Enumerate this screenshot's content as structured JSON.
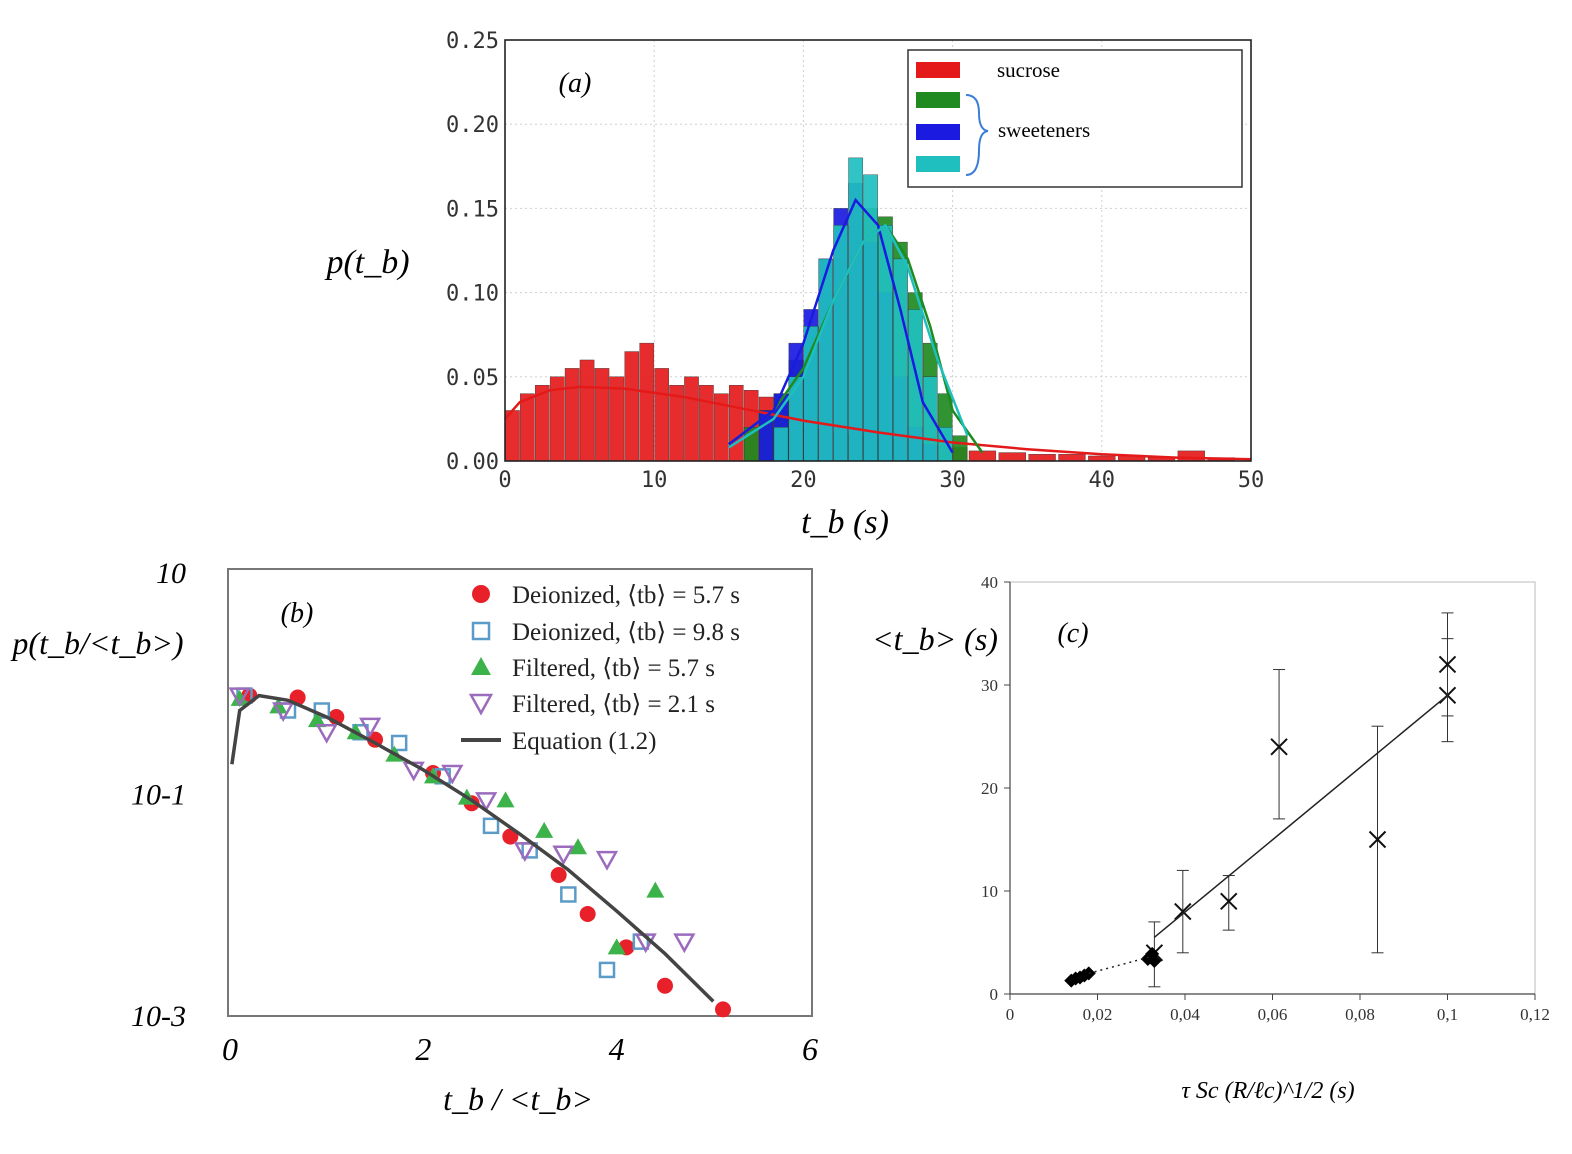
{
  "chart_data": [
    {
      "type": "bar",
      "panel": "(a)",
      "ylabel": "p(t_b)",
      "xlabel": "t_b (s)",
      "xlim": [
        0,
        50
      ],
      "ylim": [
        0,
        0.25
      ],
      "xticks": [
        "0",
        "10",
        "20",
        "30",
        "40",
        "50"
      ],
      "yticks": [
        "0.00",
        "0.05",
        "0.10",
        "0.15",
        "0.20",
        "0.25"
      ],
      "grid": true,
      "legend": {
        "placement": "top-right",
        "entries": [
          "sucrose",
          "",
          "sweeteners",
          ""
        ],
        "colors": [
          "#e41a1a",
          "#1f8a1f",
          "#1a1ae0",
          "#1fbfbf"
        ]
      },
      "series": [
        {
          "name": "sucrose",
          "color": "#e41a1a",
          "x": [
            0.5,
            1.5,
            2.5,
            3.5,
            4.5,
            5.5,
            6.5,
            7.5,
            8.5,
            9.5,
            10.5,
            11.5,
            12.5,
            13.5,
            14.5,
            15.5,
            16.5,
            17.5,
            18.5,
            19.5,
            20.5,
            21.5,
            22.5,
            23.5,
            24.5,
            25.5,
            26.5,
            27.5,
            28.5,
            29.5,
            30.5,
            32,
            34,
            36,
            38,
            40,
            42,
            44,
            46,
            48
          ],
          "values": [
            0.03,
            0.04,
            0.045,
            0.05,
            0.055,
            0.06,
            0.055,
            0.05,
            0.065,
            0.07,
            0.055,
            0.045,
            0.05,
            0.045,
            0.04,
            0.045,
            0.042,
            0.038,
            0.03,
            0.02,
            0.02,
            0.018,
            0.017,
            0.016,
            0.015,
            0.014,
            0.013,
            0.012,
            0.01,
            0.009,
            0.008,
            0.006,
            0.005,
            0.004,
            0.004,
            0.003,
            0.003,
            0.002,
            0.006,
            0.002
          ],
          "fit": [
            [
              0,
              0.025
            ],
            [
              1,
              0.035
            ],
            [
              3,
              0.042
            ],
            [
              5,
              0.044
            ],
            [
              8,
              0.043
            ],
            [
              12,
              0.038
            ],
            [
              16,
              0.031
            ],
            [
              20,
              0.024
            ],
            [
              25,
              0.017
            ],
            [
              30,
              0.011
            ],
            [
              35,
              0.007
            ],
            [
              40,
              0.004
            ],
            [
              45,
              0.002
            ],
            [
              50,
              0.001
            ]
          ]
        },
        {
          "name": "sweetener 1",
          "color": "#1f8a1f",
          "x": [
            16.5,
            17.5,
            18.5,
            19.5,
            20.5,
            21.5,
            22.5,
            23.5,
            24.5,
            25.5,
            26.5,
            27.5,
            28.5,
            29.5,
            30.5
          ],
          "values": [
            0.02,
            0.03,
            0.04,
            0.06,
            0.08,
            0.1,
            0.12,
            0.14,
            0.15,
            0.145,
            0.13,
            0.1,
            0.07,
            0.04,
            0.015
          ],
          "fit": [
            [
              15,
              0.01
            ],
            [
              18,
              0.03
            ],
            [
              20,
              0.055
            ],
            [
              22,
              0.095
            ],
            [
              24,
              0.13
            ],
            [
              25.5,
              0.14
            ],
            [
              27,
              0.12
            ],
            [
              28.5,
              0.08
            ],
            [
              30,
              0.03
            ],
            [
              32,
              0.005
            ]
          ]
        },
        {
          "name": "sweetener 2",
          "color": "#1a1ae0",
          "x": [
            17.5,
            18.5,
            19.5,
            20.5,
            21.5,
            22.5,
            23.5,
            24.5,
            25.5,
            26.5,
            27.5,
            28.5
          ],
          "values": [
            0.03,
            0.04,
            0.07,
            0.09,
            0.12,
            0.15,
            0.165,
            0.13,
            0.1,
            0.05,
            0.02,
            0.01
          ],
          "fit": [
            [
              15,
              0.01
            ],
            [
              18,
              0.03
            ],
            [
              20,
              0.07
            ],
            [
              22,
              0.125
            ],
            [
              23.5,
              0.155
            ],
            [
              25,
              0.14
            ],
            [
              26.5,
              0.09
            ],
            [
              28,
              0.035
            ],
            [
              30,
              0.005
            ]
          ]
        },
        {
          "name": "sweetener 3",
          "color": "#1fbfbf",
          "x": [
            18.5,
            19.5,
            20.5,
            21.5,
            22.5,
            23.5,
            24.5,
            25.5,
            26.5,
            27.5,
            28.5,
            29.5
          ],
          "values": [
            0.02,
            0.05,
            0.08,
            0.12,
            0.14,
            0.18,
            0.17,
            0.14,
            0.12,
            0.09,
            0.05,
            0.02
          ],
          "fit": [
            [
              15,
              0.008
            ],
            [
              18,
              0.025
            ],
            [
              20,
              0.05
            ],
            [
              22,
              0.095
            ],
            [
              24,
              0.13
            ],
            [
              25.5,
              0.14
            ],
            [
              27,
              0.115
            ],
            [
              29,
              0.06
            ],
            [
              31,
              0.015
            ]
          ]
        }
      ]
    },
    {
      "type": "scatter",
      "panel": "(b)",
      "scale": "log-y",
      "ylabel": "p(t_b/<t_b>)",
      "xlabel": "t_b / <t_b>",
      "xlim": [
        0,
        6
      ],
      "ylim": [
        0.001,
        10
      ],
      "xticks": [
        "0",
        "2",
        "4",
        "6"
      ],
      "yticks": [
        "10",
        "10-1",
        "10-3"
      ],
      "legend": {
        "placement": "top-right"
      },
      "series": [
        {
          "name": "Deionized, ⟨t_b⟩ = 5.7 s",
          "label_text": "Deionized, ⟨tb⟩ = 5.7 s",
          "marker": "circle",
          "color": "#e8202a",
          "x": [
            0.2,
            0.7,
            1.1,
            1.5,
            2.1,
            2.5,
            2.9,
            3.4,
            3.7,
            4.1,
            4.5,
            5.1
          ],
          "y": [
            0.75,
            0.72,
            0.48,
            0.3,
            0.15,
            0.08,
            0.04,
            0.018,
            0.008,
            0.004,
            0.0018,
            0.0011
          ]
        },
        {
          "name": "Deionized, ⟨t_b⟩ = 9.8 s",
          "label_text": "Deionized, ⟨tb⟩ = 9.8 s",
          "marker": "square-open",
          "color": "#5b9bc8",
          "x": [
            0.15,
            0.6,
            0.95,
            1.35,
            1.75,
            2.2,
            2.7,
            3.1,
            3.5,
            3.9,
            4.25
          ],
          "y": [
            0.75,
            0.55,
            0.55,
            0.35,
            0.28,
            0.14,
            0.05,
            0.03,
            0.012,
            0.0025,
            0.0045
          ]
        },
        {
          "name": "Filtered, ⟨t_b⟩ = 5.7 s",
          "label_text": "Filtered, ⟨tb⟩ = 5.7 s",
          "marker": "triangle",
          "color": "#3cb34a",
          "x": [
            0.1,
            0.5,
            0.9,
            1.3,
            1.7,
            2.1,
            2.45,
            2.85,
            3.25,
            3.6,
            4.0,
            4.4
          ],
          "y": [
            0.7,
            0.6,
            0.45,
            0.35,
            0.22,
            0.14,
            0.09,
            0.085,
            0.045,
            0.032,
            0.004,
            0.013
          ]
        },
        {
          "name": "Filtered, ⟨t_b⟩ = 2.1 s",
          "label_text": "Filtered, ⟨tb⟩ = 2.1 s",
          "marker": "triangle-down-open",
          "color": "#9b6bbd",
          "x": [
            0.1,
            0.55,
            1.0,
            1.45,
            1.9,
            2.3,
            2.65,
            3.05,
            3.45,
            3.9,
            4.3,
            4.7
          ],
          "y": [
            0.75,
            0.55,
            0.35,
            0.4,
            0.16,
            0.15,
            0.085,
            0.03,
            0.028,
            0.025,
            0.0045,
            0.0045
          ]
        },
        {
          "name": "Equation (1.2)",
          "label_text": "Equation (1.2)",
          "marker": "line",
          "color": "#444444",
          "x": [
            0.02,
            0.1,
            0.3,
            0.6,
            1.0,
            1.5,
            2.0,
            2.5,
            3.0,
            3.5,
            4.0,
            4.5,
            5.0
          ],
          "y": [
            0.18,
            0.55,
            0.75,
            0.68,
            0.48,
            0.28,
            0.16,
            0.085,
            0.042,
            0.02,
            0.0085,
            0.0035,
            0.0013
          ]
        }
      ]
    },
    {
      "type": "scatter",
      "panel": "(c)",
      "ylabel": "<t_b> (s)",
      "xlabel": "τ Sc (R/ℓc)^1/2 (s)",
      "xlim": [
        0,
        0.12
      ],
      "ylim": [
        0,
        40
      ],
      "xticks": [
        "0",
        "0,02",
        "0,04",
        "0,06",
        "0,08",
        "0,1",
        "0,12"
      ],
      "yticks": [
        "0",
        "10",
        "20",
        "30",
        "40"
      ],
      "series": [
        {
          "name": "crosses",
          "marker": "x",
          "x": [
            0.033,
            0.0395,
            0.05,
            0.0615,
            0.084,
            0.1,
            0.1
          ],
          "y": [
            4.0,
            8.0,
            9.0,
            24.0,
            15.0,
            29.0,
            32.0
          ],
          "err_low": [
            0.7,
            4.0,
            6.2,
            17.0,
            4.0,
            24.5,
            27.0
          ],
          "err_high": [
            7.0,
            12.0,
            11.5,
            31.5,
            26.0,
            34.5,
            37.0
          ]
        },
        {
          "name": "diamonds",
          "marker": "diamond",
          "x": [
            0.014,
            0.015,
            0.016,
            0.017,
            0.018,
            0.0315,
            0.032,
            0.0325,
            0.033
          ],
          "y": [
            1.3,
            1.5,
            1.6,
            1.8,
            2.0,
            3.4,
            3.6,
            3.9,
            3.2
          ]
        },
        {
          "name": "fit",
          "marker": "line",
          "x": [
            0.033,
            0.1
          ],
          "y": [
            5.5,
            29.0
          ]
        },
        {
          "name": "dotted",
          "marker": "dotted",
          "x": [
            0.018,
            0.032
          ],
          "y": [
            2.0,
            3.6
          ]
        }
      ]
    }
  ]
}
